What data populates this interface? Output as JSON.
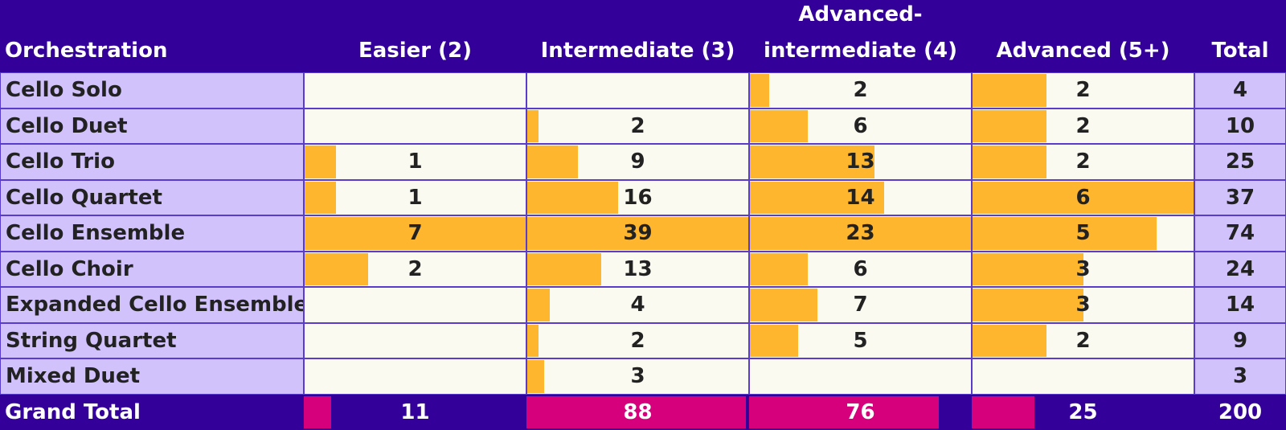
{
  "chart_data": {
    "type": "table",
    "corner_label": "Orchestration",
    "columns": [
      "Easier (2)",
      "Intermediate (3)",
      "Advanced-intermediate (4)",
      "Advanced (5+)"
    ],
    "total_label": "Total",
    "rows": [
      {
        "label": "Cello Solo",
        "values": [
          null,
          null,
          2,
          2
        ],
        "total": 4
      },
      {
        "label": "Cello Duet",
        "values": [
          null,
          2,
          6,
          2
        ],
        "total": 10
      },
      {
        "label": "Cello Trio",
        "values": [
          1,
          9,
          13,
          2
        ],
        "total": 25
      },
      {
        "label": "Cello Quartet",
        "values": [
          1,
          16,
          14,
          6
        ],
        "total": 37
      },
      {
        "label": "Cello Ensemble",
        "values": [
          7,
          39,
          23,
          5
        ],
        "total": 74
      },
      {
        "label": "Cello Choir",
        "values": [
          2,
          13,
          6,
          3
        ],
        "total": 24
      },
      {
        "label": "Expanded Cello Ensemble",
        "values": [
          null,
          4,
          7,
          3
        ],
        "total": 14
      },
      {
        "label": "String Quartet",
        "values": [
          null,
          2,
          5,
          2
        ],
        "total": 9
      },
      {
        "label": "Mixed Duet",
        "values": [
          null,
          3,
          null,
          null
        ],
        "total": 3
      }
    ],
    "grand_total": {
      "label": "Grand Total",
      "values": [
        11,
        88,
        76,
        25
      ],
      "total": 200
    },
    "colors": {
      "header_bg": "#330099",
      "row_label_bg": "#d2c2fc",
      "cell_bg": "#fbfaf0",
      "data_bar": "#ffb62f",
      "total_bar": "#d6007d",
      "border": "#5a3ccc"
    }
  }
}
